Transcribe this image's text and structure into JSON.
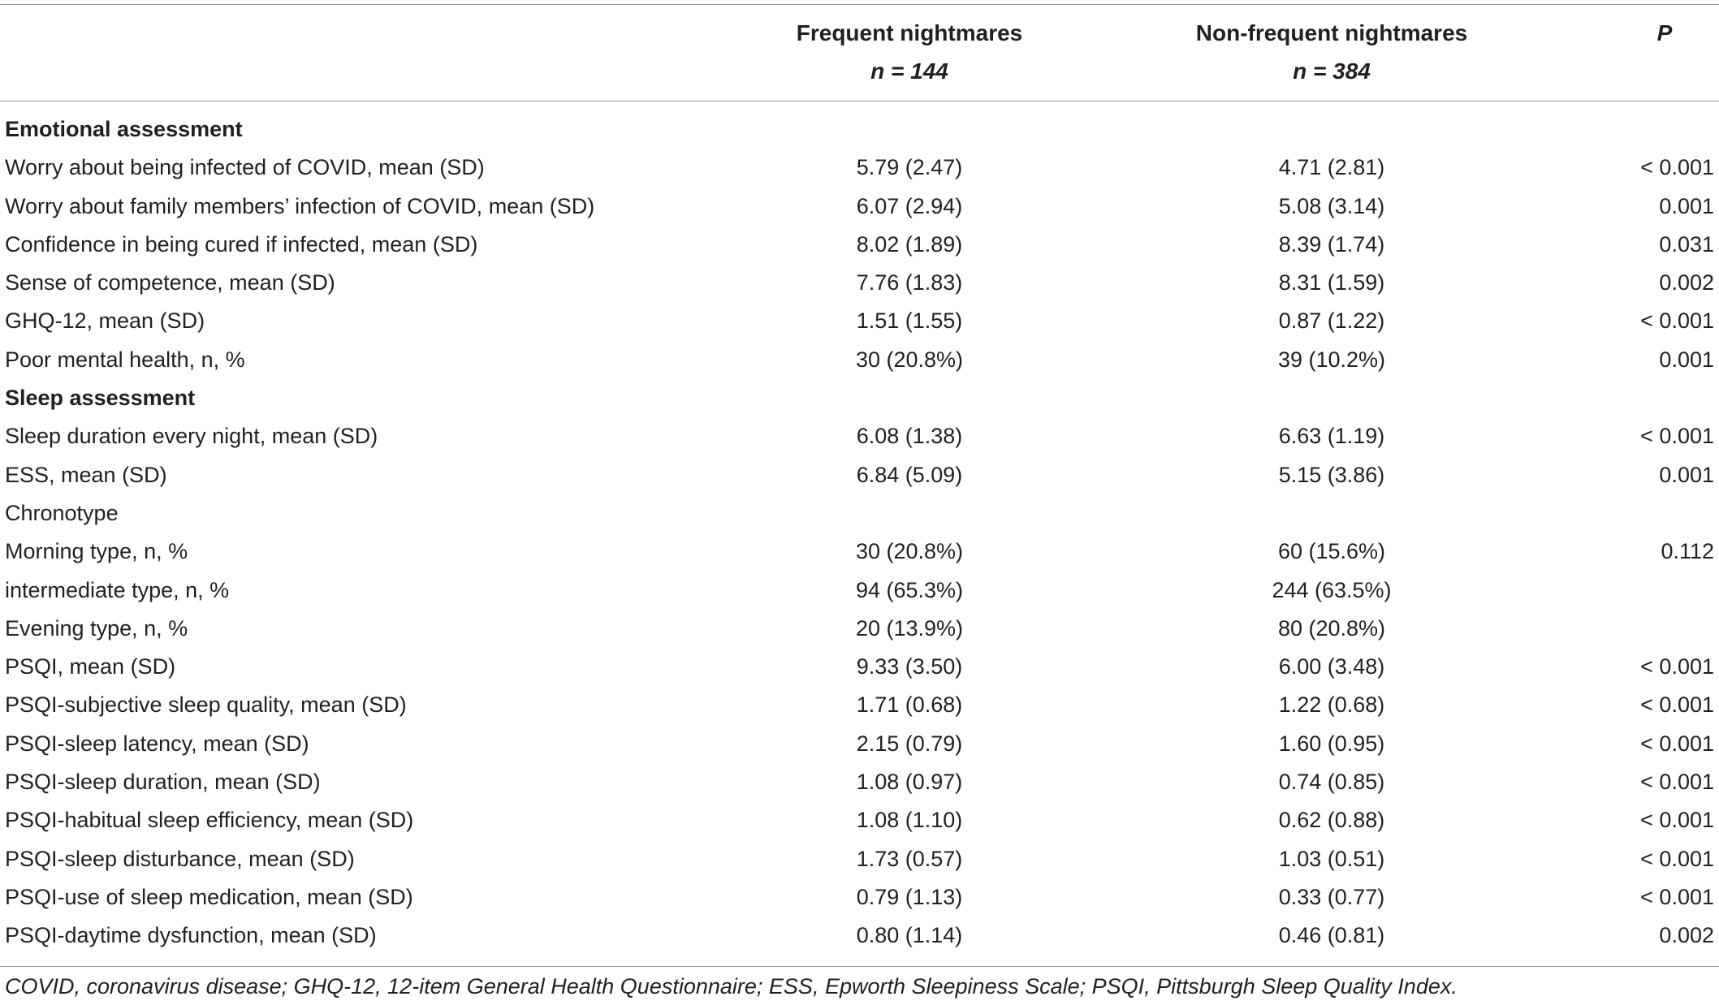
{
  "header": {
    "col1_title": "Frequent nightmares",
    "col1_n": "n = 144",
    "col2_title": "Non-frequent nightmares",
    "col2_n": "n = 384",
    "col3_title": "P"
  },
  "rows": [
    {
      "label": "Emotional assessment",
      "section": true,
      "c1": "",
      "c2": "",
      "c3": ""
    },
    {
      "label": "Worry about being infected of COVID, mean (SD)",
      "c1": "5.79 (2.47)",
      "c2": "4.71 (2.81)",
      "c3": "< 0.001"
    },
    {
      "label": "Worry about family members’ infection of COVID, mean (SD)",
      "c1": "6.07 (2.94)",
      "c2": "5.08 (3.14)",
      "c3": "0.001"
    },
    {
      "label": "Confidence in being cured if infected, mean (SD)",
      "c1": "8.02 (1.89)",
      "c2": "8.39 (1.74)",
      "c3": "0.031"
    },
    {
      "label": "Sense of competence, mean (SD)",
      "c1": "7.76 (1.83)",
      "c2": "8.31 (1.59)",
      "c3": "0.002"
    },
    {
      "label": "GHQ-12, mean (SD)",
      "c1": "1.51 (1.55)",
      "c2": "0.87 (1.22)",
      "c3": "< 0.001"
    },
    {
      "label": "Poor mental health, n, %",
      "c1": "30 (20.8%)",
      "c2": "39 (10.2%)",
      "c3": "0.001"
    },
    {
      "label": "Sleep assessment",
      "section": true,
      "c1": "",
      "c2": "",
      "c3": ""
    },
    {
      "label": "Sleep duration every night, mean (SD)",
      "c1": "6.08 (1.38)",
      "c2": "6.63 (1.19)",
      "c3": "< 0.001"
    },
    {
      "label": "ESS, mean (SD)",
      "c1": "6.84 (5.09)",
      "c2": "5.15 (3.86)",
      "c3": "0.001"
    },
    {
      "label": "Chronotype",
      "c1": "",
      "c2": "",
      "c3": ""
    },
    {
      "label": "Morning type, n, %",
      "c1": "30 (20.8%)",
      "c2": "60 (15.6%)",
      "c3": "0.112"
    },
    {
      "label": "intermediate type, n, %",
      "c1": "94 (65.3%)",
      "c2": "244 (63.5%)",
      "c3": ""
    },
    {
      "label": "Evening type, n, %",
      "c1": "20 (13.9%)",
      "c2": "80 (20.8%)",
      "c3": ""
    },
    {
      "label": "PSQI, mean (SD)",
      "c1": "9.33 (3.50)",
      "c2": "6.00 (3.48)",
      "c3": "< 0.001"
    },
    {
      "label": "PSQI-subjective sleep quality, mean (SD)",
      "c1": "1.71 (0.68)",
      "c2": "1.22 (0.68)",
      "c3": "< 0.001"
    },
    {
      "label": "PSQI-sleep latency, mean (SD)",
      "c1": "2.15 (0.79)",
      "c2": "1.60 (0.95)",
      "c3": "< 0.001"
    },
    {
      "label": "PSQI-sleep duration, mean (SD)",
      "c1": "1.08 (0.97)",
      "c2": "0.74 (0.85)",
      "c3": "< 0.001"
    },
    {
      "label": "PSQI-habitual sleep efficiency, mean (SD)",
      "c1": "1.08 (1.10)",
      "c2": "0.62 (0.88)",
      "c3": "< 0.001"
    },
    {
      "label": "PSQI-sleep disturbance, mean (SD)",
      "c1": "1.73 (0.57)",
      "c2": "1.03 (0.51)",
      "c3": "< 0.001"
    },
    {
      "label": "PSQI-use of sleep medication, mean (SD)",
      "c1": "0.79 (1.13)",
      "c2": "0.33 (0.77)",
      "c3": "< 0.001"
    },
    {
      "label": "PSQI-daytime dysfunction, mean (SD)",
      "c1": "0.80 (1.14)",
      "c2": "0.46 (0.81)",
      "c3": "0.002"
    }
  ],
  "footnote": "COVID, coronavirus disease; GHQ-12, 12-item General Health Questionnaire; ESS, Epworth Sleepiness Scale; PSQI, Pittsburgh Sleep Quality Index."
}
